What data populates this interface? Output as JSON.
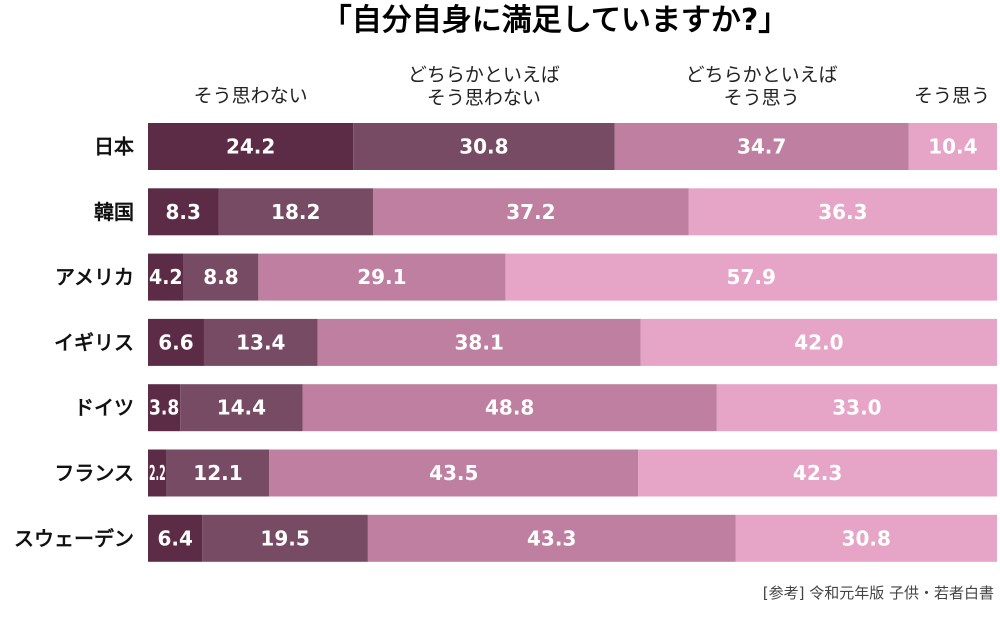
{
  "chart_data": {
    "type": "bar",
    "orientation": "horizontal",
    "stacked": true,
    "normalized": true,
    "title": "「自分自身に満足していますか?」",
    "source": "[参考] 令和元年版 子供・若者白書",
    "categories": [
      "日本",
      "韓国",
      "アメリカ",
      "イギリス",
      "ドイツ",
      "フランス",
      "スウェーデン"
    ],
    "series": [
      {
        "name": "そう思わない",
        "legend_lines": [
          "そう思わない"
        ],
        "color": "#5c2c46",
        "values": [
          24.2,
          8.3,
          4.2,
          6.6,
          3.8,
          2.2,
          6.4
        ]
      },
      {
        "name": "どちらかといえばそう思わない",
        "legend_lines": [
          "どちらかといえば",
          "そう思わない"
        ],
        "color": "#774b63",
        "values": [
          30.8,
          18.2,
          8.8,
          13.4,
          14.4,
          12.1,
          19.5
        ]
      },
      {
        "name": "どちらかといえばそう思う",
        "legend_lines": [
          "どちらかといえば",
          "そう思う"
        ],
        "color": "#bf7fa0",
        "values": [
          34.7,
          37.2,
          29.1,
          38.1,
          48.8,
          43.5,
          43.3
        ]
      },
      {
        "name": "そう思う",
        "legend_lines": [
          "そう思う"
        ],
        "color": "#e6a4c7",
        "values": [
          10.4,
          36.3,
          57.9,
          42.0,
          33.0,
          42.3,
          30.8
        ]
      }
    ],
    "value_format": "0.1"
  }
}
